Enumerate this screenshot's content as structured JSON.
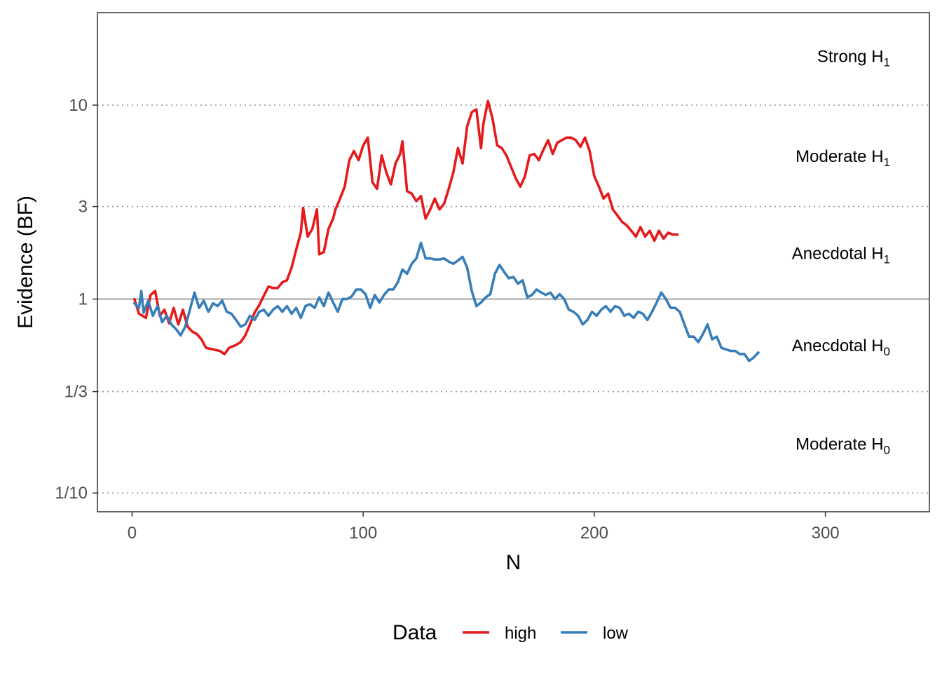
{
  "chart_data": {
    "type": "line",
    "title": "",
    "xlabel": "N",
    "ylabel": "Evidence (BF)",
    "y_scale": "log",
    "xlim": [
      -15,
      345
    ],
    "ylim": [
      0.08,
      30
    ],
    "x_ticks": [
      0,
      100,
      200,
      300
    ],
    "x_tick_labels": [
      "0",
      "100",
      "200",
      "300"
    ],
    "y_ticks": [
      0.1,
      0.3333,
      1,
      3,
      10
    ],
    "y_tick_labels": [
      "1/10",
      "1/3",
      "1",
      "3",
      "10"
    ],
    "reference_line": 1,
    "dotted_gridlines": [
      0.1,
      0.3333,
      3,
      10
    ],
    "grid": false,
    "regions": [
      {
        "label": "Strong H",
        "sub": "1",
        "y": 18
      },
      {
        "label": "Moderate H",
        "sub": "1",
        "y": 5.5
      },
      {
        "label": "Anecdotal H",
        "sub": "1",
        "y": 1.73
      },
      {
        "label": "Anecdotal H",
        "sub": "0",
        "y": 0.58
      },
      {
        "label": "Moderate H",
        "sub": "0",
        "y": 0.18
      }
    ],
    "legend": {
      "title": "Data",
      "position": "bottom"
    },
    "series": [
      {
        "name": "high",
        "color": "#e41a1c",
        "points": [
          [
            1,
            1.0
          ],
          [
            3,
            0.84
          ],
          [
            6,
            0.8
          ],
          [
            8,
            1.05
          ],
          [
            10,
            1.1
          ],
          [
            12,
            0.82
          ],
          [
            14,
            0.88
          ],
          [
            16,
            0.75
          ],
          [
            18,
            0.9
          ],
          [
            20,
            0.74
          ],
          [
            22,
            0.88
          ],
          [
            24,
            0.72
          ],
          [
            26,
            0.68
          ],
          [
            28,
            0.66
          ],
          [
            30,
            0.62
          ],
          [
            32,
            0.56
          ],
          [
            35,
            0.55
          ],
          [
            38,
            0.54
          ],
          [
            40,
            0.52
          ],
          [
            42,
            0.56
          ],
          [
            45,
            0.58
          ],
          [
            47,
            0.6
          ],
          [
            49,
            0.65
          ],
          [
            51,
            0.74
          ],
          [
            53,
            0.85
          ],
          [
            55,
            0.93
          ],
          [
            57,
            1.04
          ],
          [
            59,
            1.16
          ],
          [
            61,
            1.14
          ],
          [
            63,
            1.14
          ],
          [
            65,
            1.22
          ],
          [
            67,
            1.25
          ],
          [
            69,
            1.45
          ],
          [
            71,
            1.8
          ],
          [
            73,
            2.2
          ],
          [
            74,
            2.95
          ],
          [
            76,
            2.1
          ],
          [
            78,
            2.3
          ],
          [
            80,
            2.9
          ],
          [
            81,
            1.7
          ],
          [
            83,
            1.75
          ],
          [
            85,
            2.3
          ],
          [
            87,
            2.6
          ],
          [
            88,
            2.9
          ],
          [
            90,
            3.3
          ],
          [
            92,
            3.8
          ],
          [
            94,
            5.2
          ],
          [
            96,
            5.8
          ],
          [
            98,
            5.2
          ],
          [
            100,
            6.2
          ],
          [
            102,
            6.8
          ],
          [
            104,
            4.0
          ],
          [
            106,
            3.7
          ],
          [
            108,
            5.5
          ],
          [
            110,
            4.5
          ],
          [
            112,
            3.9
          ],
          [
            114,
            5.0
          ],
          [
            116,
            5.6
          ],
          [
            117,
            6.5
          ],
          [
            119,
            3.6
          ],
          [
            121,
            3.5
          ],
          [
            123,
            3.2
          ],
          [
            125,
            3.4
          ],
          [
            127,
            2.6
          ],
          [
            129,
            2.9
          ],
          [
            131,
            3.3
          ],
          [
            133,
            2.9
          ],
          [
            135,
            3.1
          ],
          [
            137,
            3.7
          ],
          [
            139,
            4.5
          ],
          [
            141,
            6.0
          ],
          [
            143,
            5.0
          ],
          [
            145,
            7.8
          ],
          [
            147,
            9.2
          ],
          [
            149,
            9.5
          ],
          [
            151,
            6.0
          ],
          [
            152,
            8.0
          ],
          [
            154,
            10.5
          ],
          [
            156,
            8.5
          ],
          [
            158,
            6.2
          ],
          [
            160,
            6.0
          ],
          [
            162,
            5.5
          ],
          [
            164,
            4.8
          ],
          [
            166,
            4.2
          ],
          [
            168,
            3.8
          ],
          [
            170,
            4.3
          ],
          [
            172,
            5.5
          ],
          [
            174,
            5.6
          ],
          [
            176,
            5.2
          ],
          [
            178,
            5.9
          ],
          [
            180,
            6.6
          ],
          [
            182,
            5.6
          ],
          [
            184,
            6.4
          ],
          [
            186,
            6.6
          ],
          [
            188,
            6.8
          ],
          [
            190,
            6.8
          ],
          [
            192,
            6.6
          ],
          [
            194,
            6.1
          ],
          [
            196,
            6.8
          ],
          [
            198,
            5.8
          ],
          [
            200,
            4.3
          ],
          [
            202,
            3.8
          ],
          [
            204,
            3.3
          ],
          [
            206,
            3.5
          ],
          [
            208,
            2.9
          ],
          [
            210,
            2.7
          ],
          [
            212,
            2.5
          ],
          [
            214,
            2.4
          ],
          [
            216,
            2.25
          ],
          [
            218,
            2.1
          ],
          [
            220,
            2.35
          ],
          [
            222,
            2.1
          ],
          [
            224,
            2.25
          ],
          [
            226,
            2.0
          ],
          [
            228,
            2.25
          ],
          [
            230,
            2.05
          ],
          [
            232,
            2.2
          ],
          [
            234,
            2.15
          ],
          [
            236,
            2.15
          ]
        ]
      },
      {
        "name": "low",
        "color": "#377eb8",
        "points": [
          [
            1,
            0.95
          ],
          [
            3,
            0.9
          ],
          [
            4,
            1.1
          ],
          [
            5,
            0.85
          ],
          [
            7,
            0.98
          ],
          [
            9,
            0.82
          ],
          [
            11,
            0.92
          ],
          [
            13,
            0.76
          ],
          [
            15,
            0.82
          ],
          [
            17,
            0.74
          ],
          [
            19,
            0.7
          ],
          [
            21,
            0.65
          ],
          [
            23,
            0.72
          ],
          [
            25,
            0.88
          ],
          [
            27,
            1.08
          ],
          [
            29,
            0.9
          ],
          [
            31,
            0.98
          ],
          [
            33,
            0.86
          ],
          [
            35,
            0.95
          ],
          [
            37,
            0.92
          ],
          [
            39,
            0.98
          ],
          [
            41,
            0.86
          ],
          [
            43,
            0.84
          ],
          [
            45,
            0.78
          ],
          [
            47,
            0.72
          ],
          [
            49,
            0.74
          ],
          [
            51,
            0.82
          ],
          [
            53,
            0.78
          ],
          [
            55,
            0.86
          ],
          [
            57,
            0.88
          ],
          [
            59,
            0.82
          ],
          [
            61,
            0.88
          ],
          [
            63,
            0.92
          ],
          [
            65,
            0.86
          ],
          [
            67,
            0.92
          ],
          [
            69,
            0.84
          ],
          [
            71,
            0.9
          ],
          [
            73,
            0.8
          ],
          [
            75,
            0.92
          ],
          [
            77,
            0.94
          ],
          [
            79,
            0.9
          ],
          [
            81,
            1.02
          ],
          [
            83,
            0.92
          ],
          [
            85,
            1.08
          ],
          [
            87,
            0.96
          ],
          [
            89,
            0.86
          ],
          [
            91,
            1.0
          ],
          [
            93,
            1.0
          ],
          [
            95,
            1.03
          ],
          [
            97,
            1.12
          ],
          [
            99,
            1.12
          ],
          [
            101,
            1.06
          ],
          [
            103,
            0.9
          ],
          [
            105,
            1.05
          ],
          [
            107,
            0.96
          ],
          [
            109,
            1.05
          ],
          [
            111,
            1.12
          ],
          [
            113,
            1.12
          ],
          [
            115,
            1.22
          ],
          [
            117,
            1.42
          ],
          [
            119,
            1.35
          ],
          [
            121,
            1.52
          ],
          [
            123,
            1.62
          ],
          [
            125,
            1.95
          ],
          [
            127,
            1.62
          ],
          [
            129,
            1.62
          ],
          [
            131,
            1.6
          ],
          [
            133,
            1.6
          ],
          [
            135,
            1.62
          ],
          [
            137,
            1.56
          ],
          [
            139,
            1.52
          ],
          [
            141,
            1.58
          ],
          [
            143,
            1.65
          ],
          [
            145,
            1.45
          ],
          [
            147,
            1.1
          ],
          [
            149,
            0.92
          ],
          [
            151,
            0.96
          ],
          [
            153,
            1.02
          ],
          [
            155,
            1.06
          ],
          [
            157,
            1.35
          ],
          [
            159,
            1.5
          ],
          [
            161,
            1.38
          ],
          [
            163,
            1.28
          ],
          [
            165,
            1.3
          ],
          [
            167,
            1.2
          ],
          [
            169,
            1.25
          ],
          [
            171,
            1.02
          ],
          [
            173,
            1.05
          ],
          [
            175,
            1.12
          ],
          [
            177,
            1.08
          ],
          [
            179,
            1.05
          ],
          [
            181,
            1.08
          ],
          [
            183,
            1.0
          ],
          [
            185,
            1.06
          ],
          [
            187,
            1.0
          ],
          [
            189,
            0.88
          ],
          [
            191,
            0.86
          ],
          [
            193,
            0.82
          ],
          [
            195,
            0.74
          ],
          [
            197,
            0.78
          ],
          [
            199,
            0.86
          ],
          [
            201,
            0.82
          ],
          [
            203,
            0.88
          ],
          [
            205,
            0.92
          ],
          [
            207,
            0.86
          ],
          [
            209,
            0.92
          ],
          [
            211,
            0.9
          ],
          [
            213,
            0.82
          ],
          [
            215,
            0.84
          ],
          [
            217,
            0.8
          ],
          [
            219,
            0.86
          ],
          [
            221,
            0.84
          ],
          [
            223,
            0.78
          ],
          [
            225,
            0.86
          ],
          [
            227,
            0.96
          ],
          [
            229,
            1.08
          ],
          [
            231,
            1.0
          ],
          [
            233,
            0.9
          ],
          [
            235,
            0.9
          ],
          [
            237,
            0.86
          ],
          [
            239,
            0.74
          ],
          [
            241,
            0.64
          ],
          [
            243,
            0.64
          ],
          [
            245,
            0.6
          ],
          [
            247,
            0.66
          ],
          [
            249,
            0.74
          ],
          [
            251,
            0.62
          ],
          [
            253,
            0.64
          ],
          [
            255,
            0.56
          ],
          [
            257,
            0.55
          ],
          [
            259,
            0.54
          ],
          [
            261,
            0.54
          ],
          [
            263,
            0.52
          ],
          [
            265,
            0.52
          ],
          [
            267,
            0.48
          ],
          [
            269,
            0.5
          ],
          [
            271,
            0.53
          ]
        ]
      }
    ]
  }
}
